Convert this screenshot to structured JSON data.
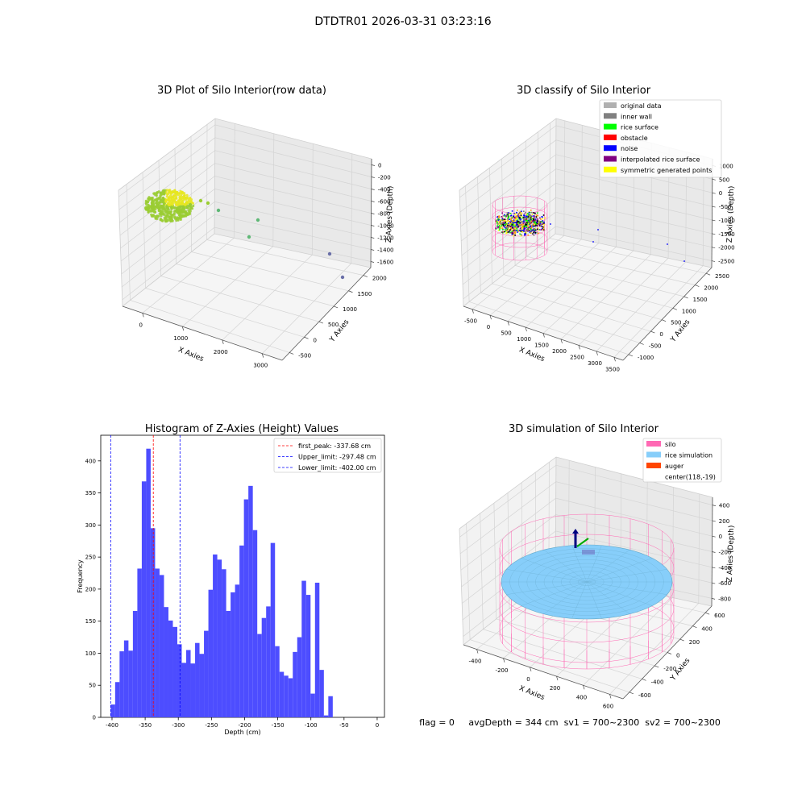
{
  "page_title": "DTDTR01 2026-03-31 03:23:16",
  "status_line": "flag = 0     avgDepth = 344 cm  sv1 = 700~2300  sv2 = 700~2300",
  "chart_data": [
    {
      "type": "scatter",
      "projection": "3d",
      "title": "3D Plot of Silo Interior(row data)",
      "xlabel": "X Axies",
      "ylabel": "Y Axies",
      "zlabel": "Z Axies (Depth)",
      "x_ticks": [
        "0",
        "1000",
        "2000",
        "3000"
      ],
      "y_ticks": [
        "-500",
        "0",
        "500",
        "1000",
        "1500",
        "2000"
      ],
      "z_ticks": [
        "0",
        "-200",
        "-400",
        "-600",
        "-800",
        "-1000",
        "-1200",
        "-1400",
        "-1600"
      ],
      "colors": {
        "cluster": "#9acd32",
        "cluster_high": "#e6e61e",
        "outlier_mid": "#5fb876",
        "outlier_far": "#6a6fa8"
      },
      "grid": true
    },
    {
      "type": "scatter",
      "projection": "3d",
      "title": "3D classify of Silo Interior",
      "xlabel": "X Axies",
      "ylabel": "Y Axies",
      "zlabel": "Z Axies (Depth)",
      "x_ticks": [
        "-500",
        "0",
        "500",
        "1000",
        "1500",
        "2000",
        "2500",
        "3000",
        "3500"
      ],
      "y_ticks": [
        "-1000",
        "-500",
        "0",
        "500",
        "1000",
        "1500",
        "2000",
        "2500"
      ],
      "z_ticks": [
        "1000",
        "500",
        "0",
        "-500",
        "-1000",
        "-1500",
        "-2000",
        "-2500"
      ],
      "legend": [
        {
          "label": "original data",
          "color": "#b0b0b0"
        },
        {
          "label": "inner wall",
          "color": "#808080"
        },
        {
          "label": "rice surface",
          "color": "#00ff00"
        },
        {
          "label": "obstacle",
          "color": "#ff0000"
        },
        {
          "label": "noise",
          "color": "#0000ff"
        },
        {
          "label": "interpolated rice surface",
          "color": "#800080"
        },
        {
          "label": "symmetric generated points",
          "color": "#ffff00"
        }
      ],
      "legend_position": "top-right",
      "grid": true
    },
    {
      "type": "bar",
      "title": "Histogram of Z-Axies (Height) Values",
      "xlabel": "Depth (cm)",
      "ylabel": "Frequency",
      "xlim": [
        -417,
        11
      ],
      "ylim": [
        0,
        440
      ],
      "x_ticks": [
        -400,
        -350,
        -300,
        -250,
        -200,
        -150,
        -100,
        -50,
        0
      ],
      "y_ticks": [
        0,
        50,
        100,
        150,
        200,
        250,
        300,
        350,
        400
      ],
      "bin_start": -402,
      "bin_width": 6.7,
      "values": [
        20,
        55,
        103,
        120,
        104,
        166,
        232,
        368,
        419,
        295,
        232,
        222,
        172,
        151,
        141,
        114,
        85,
        105,
        84,
        116,
        99,
        135,
        199,
        254,
        246,
        231,
        166,
        195,
        207,
        268,
        340,
        361,
        292,
        130,
        155,
        173,
        272,
        111,
        71,
        65,
        61,
        102,
        125,
        213,
        191,
        37,
        210,
        74,
        3,
        33
      ],
      "bar_color": "#4d4dff",
      "vlines": [
        {
          "label": "first_peak: -337.68 cm",
          "x": -337.68,
          "color": "#ff0000"
        },
        {
          "label": "Upper_limit: -297.48 cm",
          "x": -297.48,
          "color": "#0000ff"
        },
        {
          "label": "Lower_limit: -402.00 cm",
          "x": -402.0,
          "color": "#0000ff"
        }
      ],
      "legend_position": "top-right"
    },
    {
      "type": "scatter",
      "projection": "3d",
      "title": "3D simulation of Silo Interior",
      "xlabel": "X Axies",
      "ylabel": "Y Axies",
      "zlabel": "Z Axies (Depth)",
      "x_ticks": [
        "-400",
        "-200",
        "0",
        "200",
        "400",
        "600"
      ],
      "y_ticks": [
        "-600",
        "-400",
        "-200",
        "0",
        "200",
        "400",
        "600"
      ],
      "z_ticks": [
        "400",
        "200",
        "0",
        "-200",
        "-400",
        "-600",
        "-800"
      ],
      "legend": [
        {
          "label": "silo",
          "color": "#ff69b4"
        },
        {
          "label": "rice simulation",
          "color": "#87cefa"
        },
        {
          "label": "auger",
          "color": "#ff4500"
        },
        {
          "label": "center(118,-19)",
          "color": ""
        }
      ],
      "legend_position": "top-right",
      "grid": true
    }
  ]
}
